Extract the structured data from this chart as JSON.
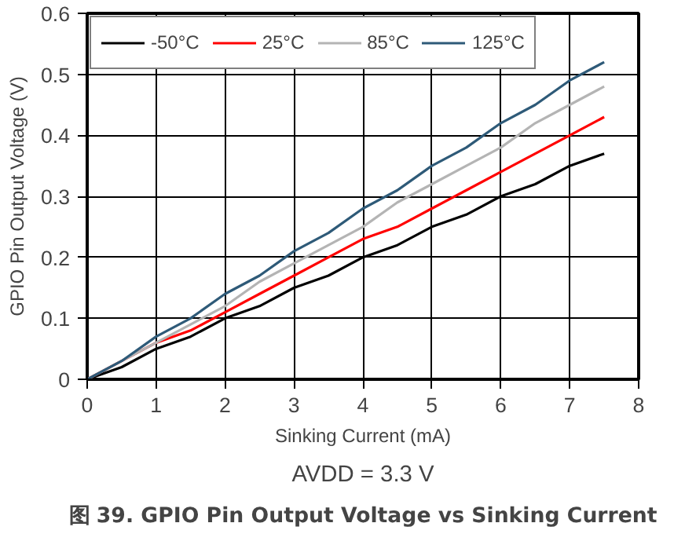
{
  "chart_data": {
    "type": "line",
    "title": "图 39. GPIO Pin Output Voltage vs Sinking Current",
    "xlabel": "Sinking Current (mA)",
    "ylabel": "GPIO Pin Output Voltage (V)",
    "annotations": [
      "AVDD = 3.3 V"
    ],
    "x": [
      0,
      0.5,
      1,
      1.5,
      2,
      2.5,
      3,
      3.5,
      4,
      4.5,
      5,
      5.5,
      6,
      6.5,
      7,
      7.5
    ],
    "series": [
      {
        "name": "-50°C",
        "color": "#000000",
        "values": [
          0,
          0.02,
          0.05,
          0.07,
          0.1,
          0.12,
          0.15,
          0.17,
          0.2,
          0.22,
          0.25,
          0.27,
          0.3,
          0.32,
          0.35,
          0.37
        ]
      },
      {
        "name": "25°C",
        "color": "#ff0000",
        "values": [
          0,
          0.03,
          0.06,
          0.08,
          0.11,
          0.14,
          0.17,
          0.2,
          0.23,
          0.25,
          0.28,
          0.31,
          0.34,
          0.37,
          0.4,
          0.43
        ]
      },
      {
        "name": "85°C",
        "color": "#b4b4b4",
        "values": [
          0,
          0.03,
          0.06,
          0.09,
          0.12,
          0.16,
          0.19,
          0.22,
          0.25,
          0.29,
          0.32,
          0.35,
          0.38,
          0.42,
          0.45,
          0.48
        ]
      },
      {
        "name": "125°C",
        "color": "#2e5a78",
        "values": [
          0,
          0.03,
          0.07,
          0.1,
          0.14,
          0.17,
          0.21,
          0.24,
          0.28,
          0.31,
          0.35,
          0.38,
          0.42,
          0.45,
          0.49,
          0.52
        ]
      }
    ],
    "xlim": [
      0,
      8
    ],
    "xticks": [
      0,
      1,
      2,
      3,
      4,
      5,
      6,
      7,
      8
    ],
    "ylim": [
      0,
      0.6
    ],
    "yticks": [
      0,
      0.1,
      0.2,
      0.3,
      0.4,
      0.5,
      0.6
    ],
    "grid": true,
    "legend": "top left",
    "marker": "none",
    "line_style": "solid"
  }
}
